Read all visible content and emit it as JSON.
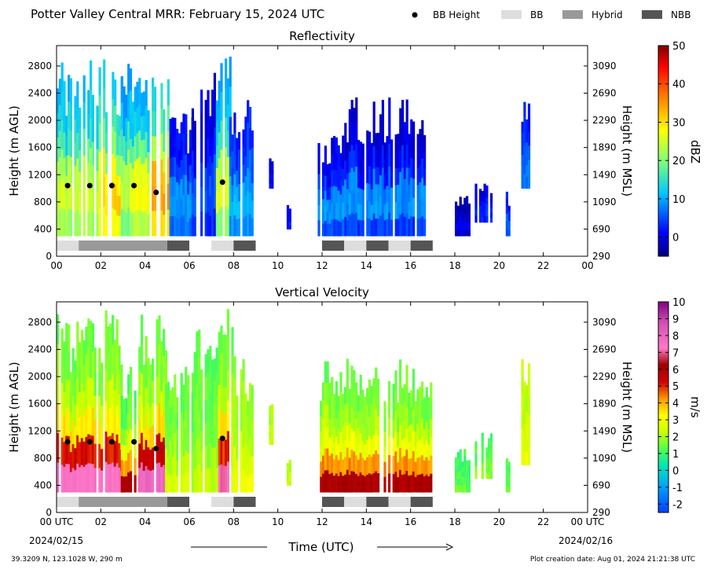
{
  "header": {
    "title": "Potter Valley Central MRR:  February 15, 2024 UTC",
    "legend": [
      {
        "label": "BB Height",
        "kind": "dot",
        "color": "#000000"
      },
      {
        "label": "BB",
        "kind": "swatch",
        "color": "#dddddd"
      },
      {
        "label": "Hybrid",
        "kind": "swatch",
        "color": "#999999"
      },
      {
        "label": "NBB",
        "kind": "swatch",
        "color": "#555555"
      }
    ]
  },
  "footer": {
    "location": "39.3209 N, 123.1028 W, 290 m",
    "creation": "Plot creation date: Aug 01, 2024 21:21:38 UTC",
    "date_left": "2024/02/15",
    "date_right": "2024/02/16",
    "xlabel": "Time (UTC)"
  },
  "axes": {
    "x_ticks": [
      "00",
      "02",
      "04",
      "06",
      "08",
      "10",
      "12",
      "14",
      "16",
      "18",
      "20",
      "22",
      "00"
    ],
    "x_ticks_bottom": [
      "00 UTC",
      "02",
      "04",
      "06",
      "08",
      "10",
      "12",
      "14",
      "16",
      "18",
      "20",
      "22",
      "00 UTC"
    ],
    "y_left_label": "Height (m AGL)",
    "y_right_label": "Height (m MSL)",
    "y_left_ticks": [
      "0",
      "400",
      "800",
      "1200",
      "1600",
      "2000",
      "2400",
      "2800"
    ],
    "y_right_ticks": [
      "290",
      "690",
      "1090",
      "1490",
      "1890",
      "2290",
      "2690",
      "3090"
    ]
  },
  "chart_data": [
    {
      "type": "heatmap",
      "title": "Reflectivity",
      "xlabel": "",
      "ylabel": "Height (m AGL)",
      "y2label": "Height (m MSL)",
      "xlim": [
        0,
        24
      ],
      "ylim": [
        0,
        3100
      ],
      "colorbar": {
        "label": "dBZ",
        "range": [
          -5,
          50
        ],
        "ticks": [
          "0",
          "10",
          "20",
          "30",
          "40",
          "50"
        ],
        "tick_values": [
          0,
          10,
          20,
          30,
          40,
          50
        ]
      },
      "bb_height": [
        {
          "x": 0.5,
          "y": 1040
        },
        {
          "x": 1.5,
          "y": 1040
        },
        {
          "x": 2.5,
          "y": 1040
        },
        {
          "x": 3.5,
          "y": 1040
        },
        {
          "x": 4.5,
          "y": 940
        },
        {
          "x": 7.5,
          "y": 1090
        }
      ],
      "bb_classification": [
        {
          "start": 0,
          "end": 1,
          "class": "BB"
        },
        {
          "start": 1,
          "end": 5,
          "class": "Hybrid"
        },
        {
          "start": 5,
          "end": 6,
          "class": "NBB"
        },
        {
          "start": 7,
          "end": 8,
          "class": "BB"
        },
        {
          "start": 8,
          "end": 9,
          "class": "NBB"
        },
        {
          "start": 12,
          "end": 13,
          "class": "NBB"
        },
        {
          "start": 13,
          "end": 14,
          "class": "BB"
        },
        {
          "start": 14,
          "end": 15,
          "class": "NBB"
        },
        {
          "start": 15,
          "end": 16,
          "class": "BB"
        },
        {
          "start": 16,
          "end": 17,
          "class": "NBB"
        }
      ],
      "echo_segments": [
        {
          "start": 0,
          "end": 1.9,
          "top": 3000,
          "base": 300,
          "level": 0.45,
          "peak": 0.62
        },
        {
          "start": 1.9,
          "end": 2.9,
          "top": 3000,
          "base": 300,
          "level": 0.52,
          "peak": 0.74
        },
        {
          "start": 2.9,
          "end": 3.3,
          "top": 3000,
          "base": 300,
          "level": 0.4,
          "peak": 0.6
        },
        {
          "start": 3.3,
          "end": 4.3,
          "top": 2950,
          "base": 300,
          "level": 0.45,
          "peak": 0.68
        },
        {
          "start": 4.3,
          "end": 5.0,
          "top": 2950,
          "base": 300,
          "level": 0.55,
          "peak": 0.85
        },
        {
          "start": 5.0,
          "end": 6.1,
          "top": 2100,
          "base": 300,
          "level": 0.18,
          "peak": 0.3
        },
        {
          "start": 6.1,
          "end": 7.2,
          "top": 2700,
          "base": 300,
          "level": 0.12,
          "peak": 0.22
        },
        {
          "start": 7.2,
          "end": 7.8,
          "top": 3000,
          "base": 300,
          "level": 0.42,
          "peak": 0.65
        },
        {
          "start": 7.8,
          "end": 8.8,
          "top": 2300,
          "base": 300,
          "level": 0.22,
          "peak": 0.32
        },
        {
          "start": 9.6,
          "end": 9.7,
          "top": 1600,
          "base": 1000,
          "level": 0.1,
          "peak": 0.12
        },
        {
          "start": 10.4,
          "end": 10.5,
          "top": 800,
          "base": 400,
          "level": 0.12,
          "peak": 0.14
        },
        {
          "start": 11.8,
          "end": 13.0,
          "top": 1900,
          "base": 300,
          "level": 0.15,
          "peak": 0.3
        },
        {
          "start": 13.0,
          "end": 16.6,
          "top": 2350,
          "base": 300,
          "level": 0.12,
          "peak": 0.3
        },
        {
          "start": 18.0,
          "end": 18.6,
          "top": 900,
          "base": 300,
          "level": 0.06,
          "peak": 0.1
        },
        {
          "start": 18.9,
          "end": 19.6,
          "top": 1100,
          "base": 500,
          "level": 0.12,
          "peak": 0.18
        },
        {
          "start": 20.3,
          "end": 20.4,
          "top": 950,
          "base": 300,
          "level": 0.2,
          "peak": 0.24
        },
        {
          "start": 21.0,
          "end": 21.3,
          "top": 2300,
          "base": 1000,
          "level": 0.2,
          "peak": 0.25
        }
      ]
    },
    {
      "type": "heatmap",
      "title": "Vertical Velocity",
      "xlabel": "Time (UTC)",
      "ylabel": "Height (m AGL)",
      "y2label": "Height (m MSL)",
      "xlim": [
        0,
        24
      ],
      "ylim": [
        0,
        3100
      ],
      "colorbar": {
        "label": "m/s",
        "range": [
          -2.5,
          10
        ],
        "ticks": [
          "-2",
          "-1",
          "0",
          "1",
          "2",
          "3",
          "4",
          "5",
          "6",
          "7",
          "8",
          "9",
          "10"
        ],
        "tick_values": [
          -2,
          -1,
          0,
          1,
          2,
          3,
          4,
          5,
          6,
          7,
          8,
          9,
          10
        ]
      },
      "bb_height": [
        {
          "x": 0.5,
          "y": 1040
        },
        {
          "x": 1.5,
          "y": 1040
        },
        {
          "x": 2.5,
          "y": 1040
        },
        {
          "x": 3.5,
          "y": 1040
        },
        {
          "x": 4.5,
          "y": 940
        },
        {
          "x": 7.5,
          "y": 1090
        }
      ],
      "bb_classification": [
        {
          "start": 0,
          "end": 1,
          "class": "BB"
        },
        {
          "start": 1,
          "end": 5,
          "class": "Hybrid"
        },
        {
          "start": 5,
          "end": 6,
          "class": "NBB"
        },
        {
          "start": 7,
          "end": 8,
          "class": "BB"
        },
        {
          "start": 8,
          "end": 9,
          "class": "NBB"
        },
        {
          "start": 12,
          "end": 13,
          "class": "NBB"
        },
        {
          "start": 13,
          "end": 14,
          "class": "BB"
        },
        {
          "start": 14,
          "end": 15,
          "class": "NBB"
        },
        {
          "start": 15,
          "end": 16,
          "class": "BB"
        },
        {
          "start": 16,
          "end": 17,
          "class": "NBB"
        }
      ],
      "echo_segments": [
        {
          "start": 0,
          "end": 2.9,
          "top": 3000,
          "base": 300,
          "level": 1.5,
          "peak": 7.5
        },
        {
          "start": 2.9,
          "end": 3.7,
          "top": 2200,
          "base": 300,
          "level": 1.2,
          "peak": 6.0
        },
        {
          "start": 3.7,
          "end": 4.9,
          "top": 3000,
          "base": 300,
          "level": 1.5,
          "peak": 7.8
        },
        {
          "start": 4.9,
          "end": 6.1,
          "top": 2400,
          "base": 300,
          "level": 1.5,
          "peak": 2.5
        },
        {
          "start": 6.1,
          "end": 7.2,
          "top": 2800,
          "base": 300,
          "level": 1.4,
          "peak": 2.2
        },
        {
          "start": 7.2,
          "end": 7.9,
          "top": 3000,
          "base": 300,
          "level": 1.5,
          "peak": 7.2
        },
        {
          "start": 7.9,
          "end": 8.8,
          "top": 2300,
          "base": 300,
          "level": 1.8,
          "peak": 3.0
        },
        {
          "start": 9.6,
          "end": 9.7,
          "top": 1600,
          "base": 1000,
          "level": 2.0,
          "peak": 2.2
        },
        {
          "start": 10.4,
          "end": 10.5,
          "top": 800,
          "base": 400,
          "level": 2.2,
          "peak": 2.4
        },
        {
          "start": 11.8,
          "end": 16.9,
          "top": 2300,
          "base": 300,
          "level": 1.5,
          "peak": 6.0
        },
        {
          "start": 18.0,
          "end": 18.6,
          "top": 950,
          "base": 300,
          "level": 1.0,
          "peak": 1.5
        },
        {
          "start": 18.9,
          "end": 19.6,
          "top": 1200,
          "base": 500,
          "level": 1.2,
          "peak": 1.8
        },
        {
          "start": 20.3,
          "end": 20.4,
          "top": 950,
          "base": 300,
          "level": 1.2,
          "peak": 1.4
        },
        {
          "start": 21.0,
          "end": 21.3,
          "top": 2300,
          "base": 700,
          "level": 2.2,
          "peak": 3.0
        }
      ]
    }
  ]
}
